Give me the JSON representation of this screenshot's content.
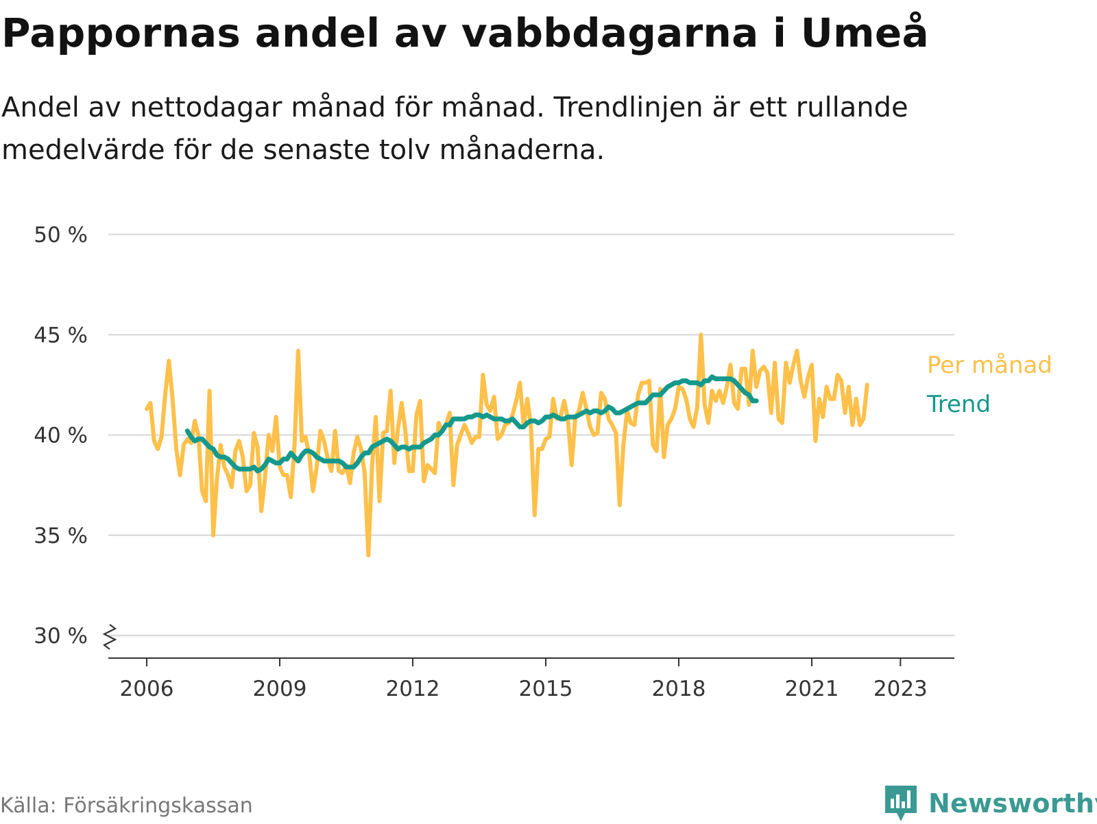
{
  "header": {
    "title": "Pappornas andel av vabbdagarna i Umeå",
    "subtitle": "Andel av nettodagar månad för månad. Trendlinjen är ett rullande medelvärde för de senaste tolv månaderna."
  },
  "footer": {
    "source": "Källa: Försäkringskassan",
    "brand": "Newsworthy"
  },
  "colors": {
    "monthly": "#fdc04a",
    "trend": "#14998c",
    "grid": "#dddddd",
    "axis": "#333333",
    "brand": "#3a9a93"
  },
  "chart_data": {
    "type": "line",
    "title": "Pappornas andel av vabbdagarna i Umeå",
    "xlabel": "",
    "ylabel": "",
    "x_ticks": [
      "2006",
      "2009",
      "2012",
      "2015",
      "2018",
      "2021",
      "2023"
    ],
    "y_ticks": [
      "30 %",
      "35 %",
      "40 %",
      "45 %",
      "50 %"
    ],
    "ylim": [
      30,
      50
    ],
    "y_axis_break": true,
    "grid": "horizontal",
    "legend": "direct labels at right end of lines",
    "series": [
      {
        "name": "Per månad",
        "start": "2006-01",
        "frequency": "monthly",
        "values": [
          41.3,
          41.6,
          39.7,
          39.3,
          39.9,
          42.0,
          43.7,
          41.8,
          39.3,
          38.0,
          39.5,
          39.8,
          39.6,
          40.7,
          40.0,
          37.2,
          36.7,
          42.2,
          35.0,
          37.8,
          39.5,
          38.4,
          38.0,
          37.4,
          39.2,
          39.7,
          38.9,
          37.2,
          37.5,
          40.1,
          39.4,
          36.2,
          37.8,
          40.0,
          39.2,
          40.9,
          38.4,
          38.0,
          38.0,
          36.9,
          39.5,
          44.2,
          39.7,
          39.9,
          39.0,
          37.2,
          38.4,
          40.2,
          39.7,
          38.8,
          38.2,
          40.2,
          38.2,
          38.1,
          38.5,
          37.6,
          39.1,
          39.9,
          39.3,
          38.1,
          34.0,
          38.5,
          40.9,
          36.7,
          40.1,
          40.2,
          42.2,
          38.6,
          40.3,
          41.6,
          40.2,
          38.2,
          38.2,
          41.0,
          41.7,
          37.7,
          38.5,
          38.3,
          38.1,
          40.6,
          40.2,
          40.5,
          41.1,
          37.5,
          39.5,
          40.0,
          40.5,
          40.1,
          39.6,
          39.9,
          39.9,
          43.0,
          41.5,
          41.2,
          41.9,
          39.8,
          40.0,
          40.5,
          40.6,
          41.0,
          41.7,
          42.6,
          40.5,
          41.8,
          40.4,
          36.0,
          39.3,
          39.3,
          39.8,
          39.9,
          41.8,
          40.8,
          40.9,
          41.7,
          40.8,
          38.5,
          40.9,
          41.2,
          42.1,
          41.3,
          40.4,
          40.0,
          40.1,
          42.1,
          41.8,
          40.8,
          40.5,
          40.1,
          36.5,
          39.5,
          41.2,
          40.6,
          40.5,
          42.0,
          42.6,
          42.6,
          42.7,
          39.5,
          39.2,
          42.3,
          38.9,
          40.5,
          40.8,
          41.3,
          42.4,
          42.3,
          41.8,
          40.8,
          40.4,
          41.4,
          45.0,
          41.5,
          40.6,
          42.2,
          41.7,
          42.2,
          41.6,
          42.4,
          43.5,
          41.6,
          41.3,
          43.3,
          43.3,
          41.5,
          44.2,
          42.4,
          43.2,
          43.4,
          43.1,
          41.1,
          43.6,
          40.8,
          40.6,
          43.6,
          42.6,
          43.5,
          44.2,
          42.7,
          41.9,
          42.9,
          43.5,
          39.7,
          41.8,
          40.9,
          42.4,
          41.8,
          41.8,
          43.0,
          42.7,
          41.1,
          42.4,
          40.5,
          41.8,
          40.5,
          40.8,
          42.5
        ]
      },
      {
        "name": "Trend",
        "start": "2006-12",
        "frequency": "monthly",
        "values": [
          40.2,
          39.9,
          39.7,
          39.8,
          39.8,
          39.6,
          39.4,
          39.3,
          39.0,
          38.9,
          38.9,
          38.8,
          38.6,
          38.4,
          38.3,
          38.3,
          38.3,
          38.3,
          38.4,
          38.2,
          38.3,
          38.5,
          38.8,
          38.7,
          38.6,
          38.6,
          38.8,
          38.8,
          39.1,
          38.9,
          38.7,
          39.0,
          39.2,
          39.2,
          39.1,
          38.9,
          38.8,
          38.7,
          38.7,
          38.7,
          38.7,
          38.7,
          38.6,
          38.4,
          38.4,
          38.4,
          38.6,
          38.9,
          39.1,
          39.1,
          39.4,
          39.5,
          39.6,
          39.7,
          39.8,
          39.7,
          39.5,
          39.3,
          39.4,
          39.4,
          39.3,
          39.4,
          39.4,
          39.4,
          39.6,
          39.7,
          39.8,
          40.0,
          40.0,
          40.2,
          40.5,
          40.5,
          40.8,
          40.8,
          40.8,
          40.8,
          40.9,
          40.9,
          41.0,
          41.0,
          40.9,
          41.0,
          40.9,
          40.8,
          40.8,
          40.8,
          40.7,
          40.7,
          40.8,
          40.6,
          40.4,
          40.4,
          40.6,
          40.7,
          40.7,
          40.6,
          40.7,
          40.9,
          40.9,
          41.0,
          40.9,
          40.8,
          40.8,
          40.9,
          40.9,
          40.9,
          41.0,
          41.1,
          41.2,
          41.1,
          41.2,
          41.2,
          41.1,
          41.2,
          41.4,
          41.3,
          41.1,
          41.1,
          41.2,
          41.3,
          41.4,
          41.5,
          41.6,
          41.6,
          41.6,
          41.8,
          42.0,
          42.0,
          42.0,
          42.2,
          42.4,
          42.5,
          42.6,
          42.6,
          42.7,
          42.7,
          42.6,
          42.6,
          42.6,
          42.5,
          42.7,
          42.7,
          42.9,
          42.8,
          42.8,
          42.8,
          42.8,
          42.8,
          42.7,
          42.5,
          42.3,
          42.1,
          42.0,
          41.7,
          41.7
        ]
      }
    ]
  }
}
